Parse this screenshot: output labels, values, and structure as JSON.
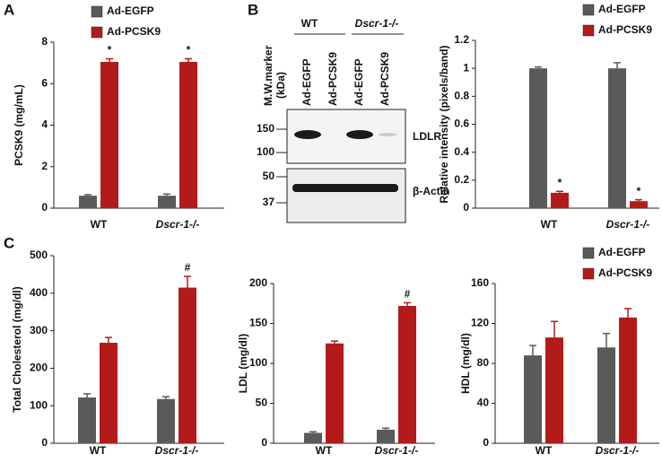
{
  "panels": [
    "A",
    "B",
    "C"
  ],
  "blot": {
    "marker_title": "M.W.marker",
    "marker_unit": "(kDa)",
    "groups": [
      "WT",
      "Dscr-1-/-"
    ],
    "lanes": [
      "Ad-EGFP",
      "Ad-PCSK9",
      "Ad-EGFP",
      "Ad-PCSK9"
    ],
    "markers": [
      "150",
      "100",
      "50",
      "37"
    ],
    "bands": [
      "LDLR",
      "β-Actin"
    ]
  },
  "chart_data": [
    {
      "type": "bar",
      "y_label": "PCSK9 (mg/mL)",
      "categories": [
        "WT",
        "Dscr-1-/-"
      ],
      "series": [
        {
          "name": "Ad-EGFP",
          "color": "#5a5a5a",
          "values": [
            0.6,
            0.6
          ],
          "errors": [
            0.05,
            0.08
          ],
          "annotations": [
            null,
            null
          ]
        },
        {
          "name": "Ad-PCSK9",
          "color": "#b31b1b",
          "values": [
            7.05,
            7.05
          ],
          "errors": [
            0.15,
            0.15
          ],
          "annotations": [
            "*",
            "*"
          ]
        }
      ],
      "ylim": [
        0,
        8
      ],
      "yticks": [
        0,
        2,
        4,
        6,
        8
      ],
      "legend": "upper left"
    },
    {
      "type": "bar",
      "y_label": "Relative intensity (pixels/band)",
      "categories": [
        "WT",
        "Dscr-1-/-"
      ],
      "series": [
        {
          "name": "Ad-EGFP",
          "color": "#5a5a5a",
          "values": [
            1.0,
            1.0
          ],
          "errors": [
            0.01,
            0.04
          ],
          "annotations": [
            null,
            null
          ]
        },
        {
          "name": "Ad-PCSK9",
          "color": "#b31b1b",
          "values": [
            0.11,
            0.05
          ],
          "errors": [
            0.01,
            0.01
          ],
          "annotations": [
            "*",
            "*"
          ]
        }
      ],
      "ylim": [
        0,
        1.2
      ],
      "yticks": [
        0,
        0.2,
        0.4,
        0.6,
        0.8,
        1,
        1.2
      ],
      "legend": "upper right"
    },
    {
      "type": "bar",
      "y_label": "Total Cholesterol (mg/dl)",
      "categories": [
        "WT",
        "Dscr-1-/-"
      ],
      "series": [
        {
          "color": "#5a5a5a",
          "values": [
            122,
            118
          ],
          "errors": [
            10,
            6
          ],
          "annotations": [
            null,
            null
          ]
        },
        {
          "color": "#b31b1b",
          "values": [
            268,
            415
          ],
          "errors": [
            14,
            30
          ],
          "annotations": [
            null,
            "#"
          ]
        }
      ],
      "ylim": [
        0,
        500
      ],
      "yticks": [
        0,
        100,
        200,
        300,
        400,
        500
      ],
      "legend": false
    },
    {
      "type": "bar",
      "y_label": "LDL (mg/dl)",
      "categories": [
        "WT",
        "Dscr-1-/-"
      ],
      "series": [
        {
          "color": "#5a5a5a",
          "values": [
            13,
            17
          ],
          "errors": [
            1.5,
            2
          ],
          "annotations": [
            null,
            null
          ]
        },
        {
          "color": "#b31b1b",
          "values": [
            125,
            172
          ],
          "errors": [
            3,
            4
          ],
          "annotations": [
            null,
            "#"
          ]
        }
      ],
      "ylim": [
        0,
        200
      ],
      "yticks": [
        0,
        50,
        100,
        150,
        200
      ],
      "legend": false
    },
    {
      "type": "bar",
      "y_label": "HDL (mg/dl)",
      "categories": [
        "WT",
        "Dscr-1-/-"
      ],
      "series": [
        {
          "name": "Ad-EGFP",
          "color": "#5a5a5a",
          "values": [
            88,
            96
          ],
          "errors": [
            10,
            14
          ],
          "annotations": [
            null,
            null
          ]
        },
        {
          "name": "Ad-PCSK9",
          "color": "#b31b1b",
          "values": [
            106,
            126
          ],
          "errors": [
            16,
            9
          ],
          "annotations": [
            null,
            null
          ]
        }
      ],
      "ylim": [
        0,
        160
      ],
      "yticks": [
        0,
        40,
        80,
        120,
        160
      ],
      "legend": "upper right"
    }
  ]
}
